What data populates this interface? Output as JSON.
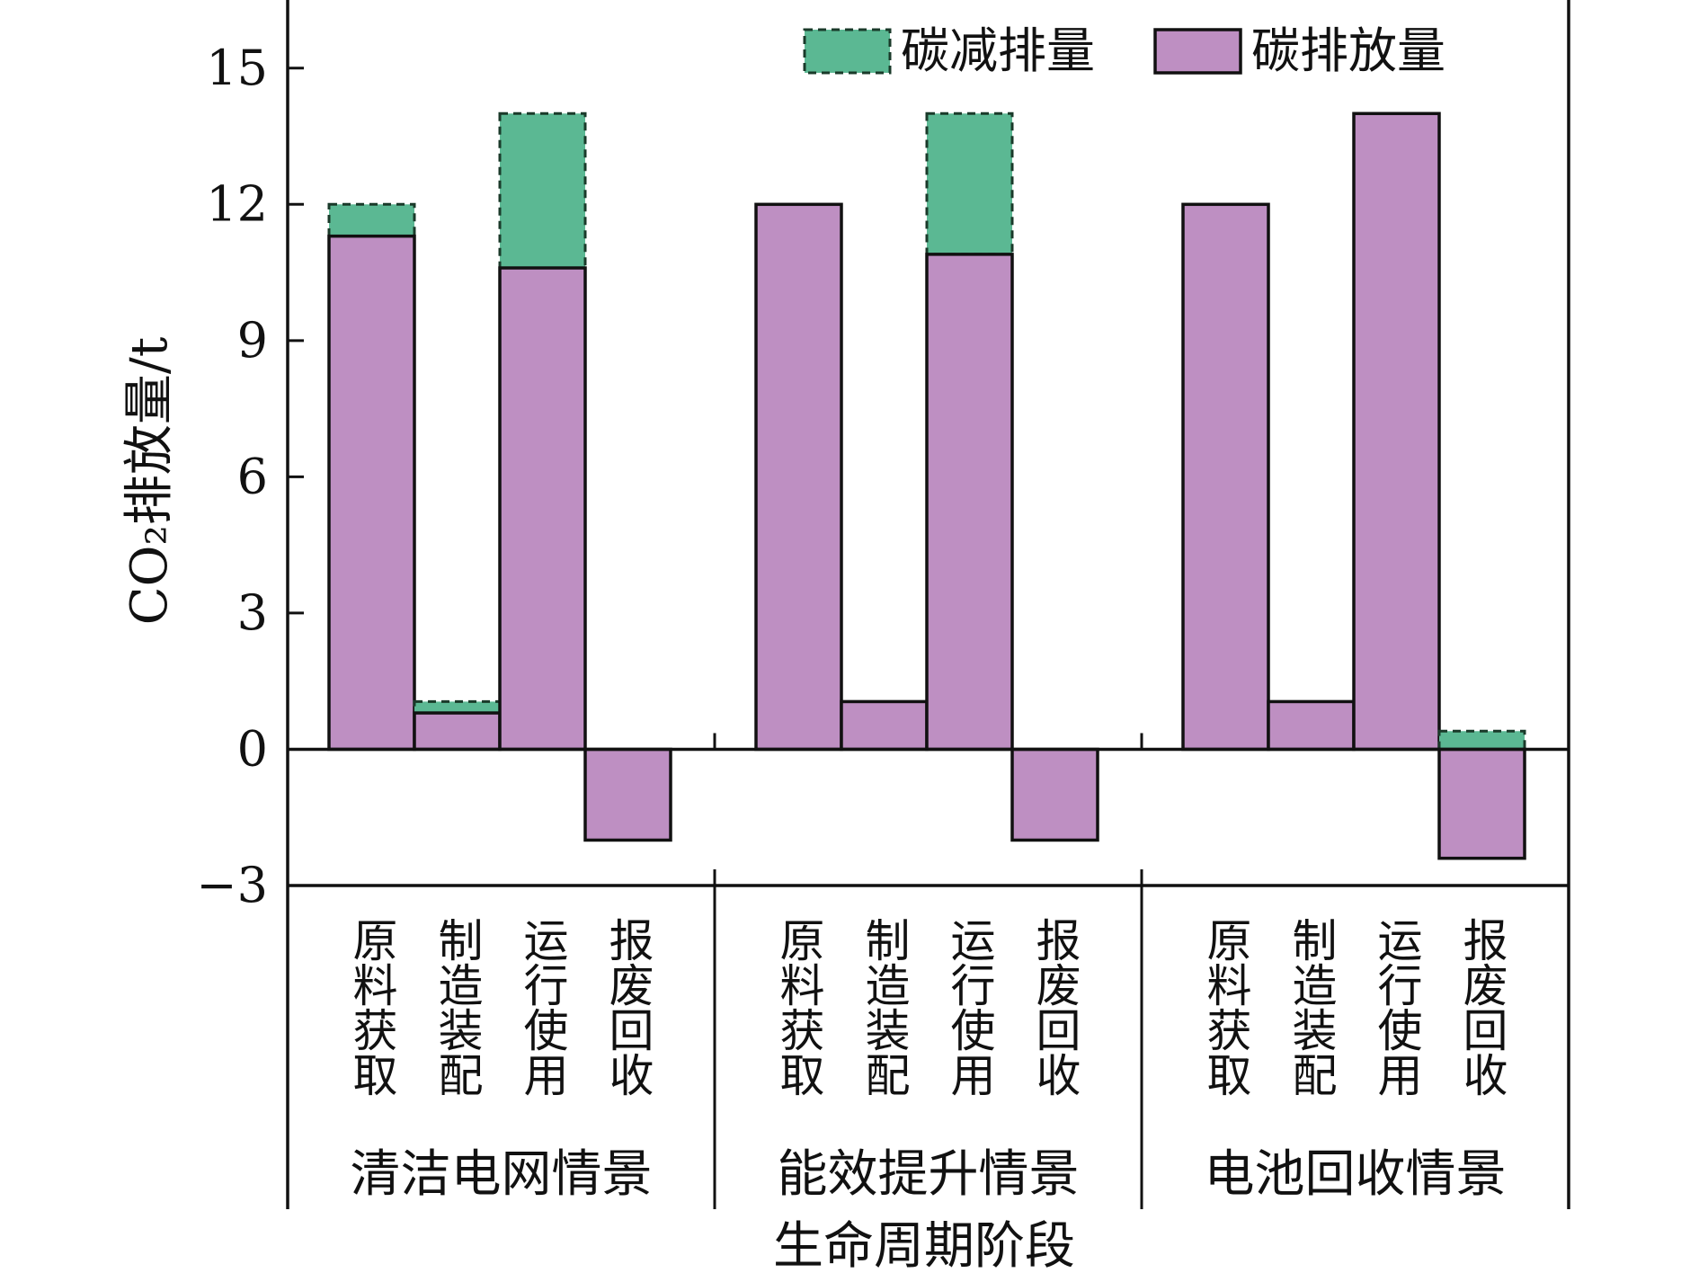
{
  "chart_data": {
    "type": "bar",
    "xlabel": "生命周期阶段",
    "ylabel": "CO₂排放量/t",
    "ylim": [
      -3,
      16.5
    ],
    "yticks": [
      -3,
      0,
      3,
      6,
      9,
      12,
      15
    ],
    "ytick_labels": [
      "−3",
      "0",
      "3",
      "6",
      "9",
      "12",
      "15"
    ],
    "legend": {
      "position": "top-right",
      "entries": [
        {
          "key": "reduction",
          "label": "碳减排量",
          "color": "#5bb893",
          "style": "dashed"
        },
        {
          "key": "emission",
          "label": "碳排放量",
          "color": "#be8fc2",
          "style": "solid"
        }
      ]
    },
    "stages": [
      "原料获取",
      "制造装配",
      "运行使用",
      "报废回收"
    ],
    "groups": [
      {
        "name": "清洁电网情景",
        "emission": [
          11.3,
          0.8,
          10.6,
          -2.0
        ],
        "reduction": [
          0.7,
          0.25,
          3.4,
          0
        ]
      },
      {
        "name": "能效提升情景",
        "emission": [
          12.0,
          1.05,
          10.9,
          -2.0
        ],
        "reduction": [
          0,
          0,
          3.1,
          0
        ]
      },
      {
        "name": "电池回收情景",
        "emission": [
          12.0,
          1.05,
          14.0,
          -2.4
        ],
        "reduction": [
          0,
          0,
          0,
          0.4
        ]
      }
    ]
  }
}
